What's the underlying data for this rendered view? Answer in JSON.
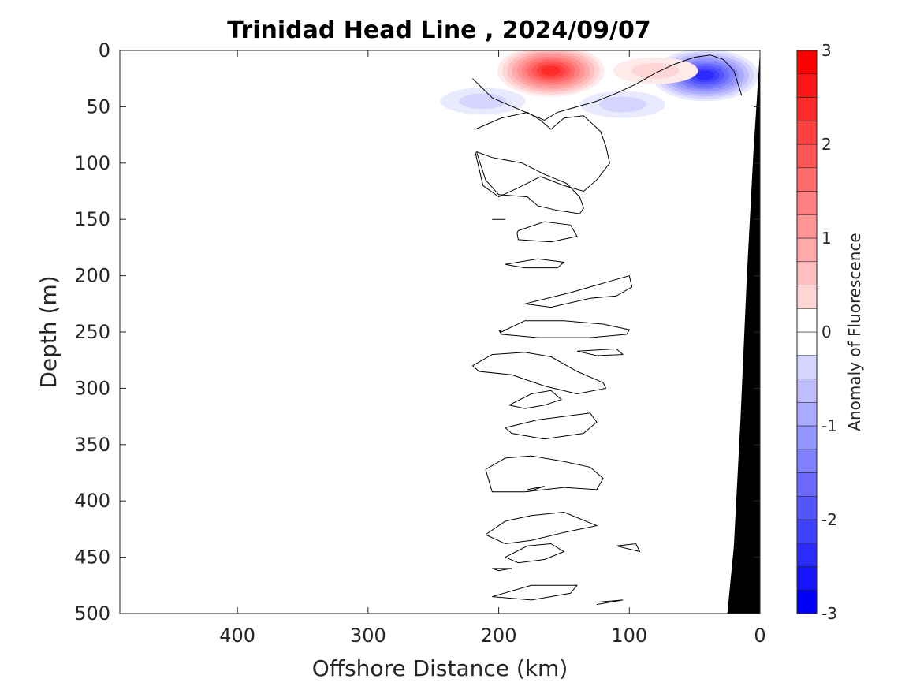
{
  "chart_data": {
    "type": "heatmap",
    "subtype": "filled-contour section",
    "title": "Trinidad Head Line , 2024/09/07",
    "xlabel": "Offshore Distance (km)",
    "ylabel": "Depth (m)",
    "xlim": [
      490,
      0
    ],
    "ylim": [
      0,
      500
    ],
    "x_direction": "reversed",
    "y_direction": "reversed",
    "x_ticks": [
      400,
      300,
      200,
      100,
      0
    ],
    "x_tick_labels": [
      "400",
      "300",
      "200",
      "100",
      "0"
    ],
    "y_ticks": [
      0,
      50,
      100,
      150,
      200,
      250,
      300,
      350,
      400,
      450,
      500
    ],
    "y_tick_labels": [
      "0",
      "50",
      "100",
      "150",
      "200",
      "250",
      "300",
      "350",
      "400",
      "450",
      "500"
    ],
    "colorbar": {
      "label": "Anomaly of Fluorescence",
      "range": [
        -3,
        3
      ],
      "step": 0.25,
      "ticks": [
        3,
        2,
        1,
        0,
        -1,
        -2,
        -3
      ],
      "tick_labels": [
        "3",
        "2",
        "1",
        "0",
        "-1",
        "-2",
        "-3"
      ],
      "colormap": "blue-white-red",
      "color_negative": "#0000ff",
      "color_positive": "#ff0000",
      "color_zero": "#ffffff"
    },
    "data_extent_km": [
      0,
      220
    ],
    "bathymetry_color": "#000000",
    "bathymetry": {
      "distance_km": [
        0,
        5,
        10,
        15,
        20,
        25
      ],
      "depth_m": [
        0,
        90,
        200,
        330,
        440,
        500
      ]
    },
    "features": [
      {
        "name": "surface high",
        "x_km": 160,
        "depth_m": 18,
        "value": 2.6
      },
      {
        "name": "surface low",
        "x_km": 42,
        "depth_m": 22,
        "value": -2.4
      },
      {
        "name": "weak low (offshore)",
        "x_km": 212,
        "depth_m": 45,
        "value": -0.5
      },
      {
        "name": "weak low (mid)",
        "x_km": 105,
        "depth_m": 48,
        "value": -0.5
      },
      {
        "name": "weak high (nearshore)",
        "x_km": 80,
        "depth_m": 18,
        "value": 0.6
      }
    ],
    "zero_contours": [
      {
        "x_km": [
          220,
          205,
          185,
          165,
          155,
          140,
          125,
          110,
          95,
          80,
          65,
          50,
          38,
          28,
          20,
          14
        ],
        "depth_m": [
          25,
          42,
          52,
          62,
          55,
          50,
          45,
          38,
          30,
          20,
          12,
          6,
          4,
          8,
          18,
          40
        ]
      },
      {
        "x_km": [
          218,
          198,
          178,
          168,
          160,
          150,
          135,
          122,
          118,
          115,
          125,
          135,
          150,
          168,
          185,
          200,
          212,
          218
        ],
        "depth_m": [
          70,
          60,
          55,
          62,
          70,
          60,
          58,
          72,
          85,
          100,
          115,
          125,
          120,
          112,
          122,
          130,
          120,
          90
        ]
      },
      {
        "x_km": [
          217,
          205,
          182,
          165,
          148,
          138,
          135,
          138,
          155,
          170,
          178,
          200,
          210,
          217
        ],
        "depth_m": [
          90,
          95,
          100,
          110,
          118,
          130,
          140,
          145,
          142,
          138,
          130,
          128,
          115,
          90
        ]
      },
      {
        "x_km": [
          205,
          195
        ],
        "depth_m": [
          150,
          150
        ]
      },
      {
        "x_km": [
          185,
          165,
          145,
          140,
          160,
          185,
          186,
          185
        ],
        "depth_m": [
          160,
          152,
          155,
          165,
          170,
          168,
          162,
          160
        ]
      },
      {
        "x_km": [
          195,
          170,
          150,
          155,
          180,
          195
        ],
        "depth_m": [
          190,
          185,
          188,
          193,
          193,
          190
        ]
      },
      {
        "x_km": [
          180,
          145,
          115,
          100,
          98,
          110,
          130,
          160,
          180
        ],
        "depth_m": [
          225,
          215,
          205,
          200,
          210,
          218,
          220,
          228,
          225
        ]
      },
      {
        "x_km": [
          198,
          180,
          150,
          120,
          100,
          102,
          130,
          170,
          198,
          200,
          198
        ],
        "depth_m": [
          250,
          240,
          240,
          243,
          248,
          252,
          255,
          255,
          252,
          248,
          250
        ]
      },
      {
        "x_km": [
          220,
          205,
          180,
          160,
          140,
          120,
          118,
          140,
          165,
          190,
          215,
          220
        ],
        "depth_m": [
          280,
          270,
          268,
          272,
          285,
          295,
          300,
          305,
          298,
          288,
          285,
          280
        ]
      },
      {
        "x_km": [
          140,
          110,
          105,
          125,
          140
        ],
        "depth_m": [
          267,
          265,
          270,
          271,
          267
        ]
      },
      {
        "x_km": [
          192,
          175,
          160,
          152,
          165,
          180,
          192
        ],
        "depth_m": [
          315,
          305,
          302,
          310,
          315,
          318,
          315
        ]
      },
      {
        "x_km": [
          195,
          170,
          150,
          130,
          125,
          135,
          165,
          190,
          195
        ],
        "depth_m": [
          335,
          328,
          325,
          322,
          330,
          340,
          345,
          340,
          335
        ]
      },
      {
        "x_km": [
          210,
          195,
          175,
          150,
          130,
          120,
          125,
          150,
          180,
          205,
          210
        ],
        "depth_m": [
          372,
          362,
          360,
          365,
          370,
          380,
          390,
          388,
          392,
          392,
          372
        ]
      },
      {
        "x_km": [
          178,
          165,
          178
        ],
        "depth_m": [
          390,
          387,
          392
        ]
      },
      {
        "x_km": [
          210,
          195,
          175,
          150,
          125,
          150,
          175,
          195,
          210
        ],
        "depth_m": [
          430,
          418,
          413,
          410,
          422,
          428,
          435,
          438,
          430
        ]
      },
      {
        "x_km": [
          195,
          178,
          160,
          150,
          165,
          185,
          195
        ],
        "depth_m": [
          450,
          440,
          438,
          445,
          452,
          455,
          450
        ]
      },
      {
        "x_km": [
          205,
          190,
          200,
          205
        ],
        "depth_m": [
          460,
          460,
          462,
          460
        ]
      },
      {
        "x_km": [
          205,
          175,
          140,
          145,
          175,
          205
        ],
        "depth_m": [
          485,
          475,
          475,
          482,
          488,
          485
        ]
      },
      {
        "x_km": [
          125,
          105,
          125
        ],
        "depth_m": [
          490,
          488,
          492
        ]
      },
      {
        "x_km": [
          110,
          95,
          92,
          110
        ],
        "depth_m": [
          440,
          438,
          445,
          440
        ]
      }
    ]
  }
}
